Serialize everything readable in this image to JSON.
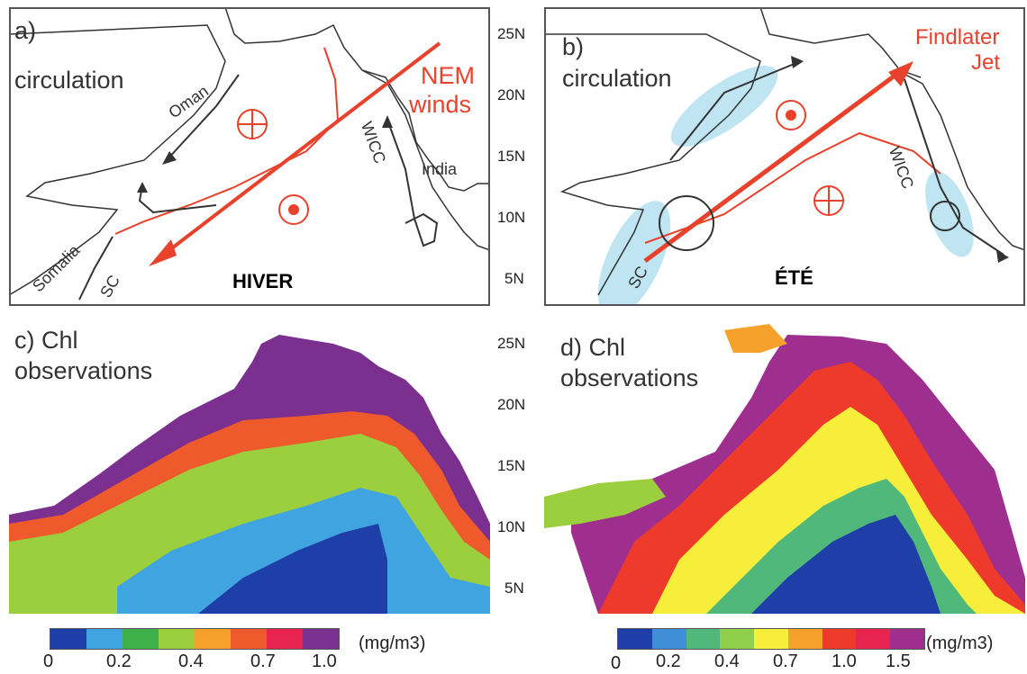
{
  "panels": {
    "a": {
      "label": "a)",
      "title": "circulation",
      "season": "HIVER",
      "names": {
        "oman": "Oman",
        "india": "India",
        "somalia": "Somalia",
        "sc": "SC",
        "wicc": "WICC"
      },
      "wind": [
        "NEM",
        "winds"
      ]
    },
    "b": {
      "label": "b)",
      "title": "circulation",
      "season": "ÉTÉ",
      "names": {
        "sc": "SC",
        "wicc": "WICC"
      },
      "wind": [
        "Findlater",
        "Jet"
      ]
    },
    "c": {
      "label": "c) Chl",
      "title": "observations"
    },
    "d": {
      "label": "d) Chl",
      "title": "observations"
    }
  },
  "latitudes_top": [
    "25N",
    "20N",
    "15N",
    "10N",
    "5N"
  ],
  "latitudes_bottom": [
    "25N",
    "20N",
    "15N",
    "10N",
    "5N"
  ],
  "colorbar_left": {
    "unit": "(mg/m3)",
    "ticks": [
      "0",
      "0.2",
      "0.4",
      "0.7",
      "1.0"
    ],
    "colors": [
      "#1f3fa8",
      "#3fa4e0",
      "#3fb14a",
      "#9ccf3d",
      "#f6a12b",
      "#ee5a2b",
      "#e9234f",
      "#7b2f8f"
    ]
  },
  "colorbar_right": {
    "unit": "(mg/m3)",
    "ticks": [
      "0",
      "0.2",
      "0.4",
      "0.7",
      "1.0",
      "1.5"
    ],
    "colors": [
      "#1f3fa8",
      "#3f8fd8",
      "#4fb87a",
      "#8fcf4a",
      "#f6ee3a",
      "#f6a12b",
      "#ee3a2b",
      "#e9234f",
      "#9e2f8f"
    ]
  },
  "colors": {
    "wind": "#e8412c",
    "current": "#333333",
    "upwelling": "#bfe5f3"
  }
}
